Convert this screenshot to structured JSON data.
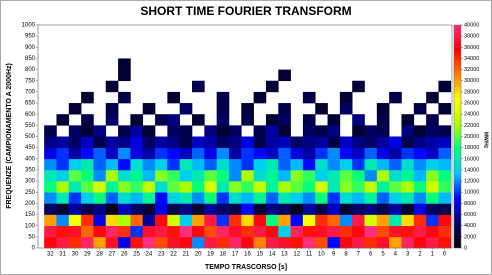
{
  "chart_data": {
    "type": "heatmap",
    "title": "SHORT TIME FOURIER TRANSFORM",
    "x_label": "TEMPO TRASCORSO [s]",
    "y_label": "FREQUENZE (CAMPIONAMENTO A 2000Hz)",
    "colorbar_label": "MW/Hz",
    "x": [
      32,
      31,
      30,
      29,
      28,
      27,
      26,
      25,
      24,
      23,
      22,
      21,
      20,
      19,
      18,
      17,
      16,
      15,
      14,
      13,
      12,
      11,
      10,
      9,
      8,
      7,
      6,
      5,
      4,
      3,
      2,
      1,
      0
    ],
    "xlim": [
      33,
      -0.6
    ],
    "y_bins": [
      0,
      50,
      100,
      150,
      200,
      250,
      300,
      350,
      400,
      450,
      500,
      550,
      600,
      650,
      700,
      750,
      800,
      850,
      900,
      950,
      1000
    ],
    "ylim": [
      0,
      1000
    ],
    "yticks": [
      0,
      50,
      100,
      150,
      200,
      250,
      300,
      350,
      400,
      450,
      500,
      550,
      600,
      650,
      700,
      750,
      800,
      850,
      900,
      950,
      1000
    ],
    "zlim": [
      0,
      40000
    ],
    "zticks": [
      0,
      2000,
      4000,
      6000,
      8000,
      10000,
      12000,
      14000,
      16000,
      18000,
      20000,
      22000,
      24000,
      26000,
      28000,
      30000,
      32000,
      34000,
      36000,
      38000,
      40000
    ],
    "colormap": [
      "#000000",
      "#00006e",
      "#0000ff",
      "#00c8ff",
      "#00ff80",
      "#b4ff00",
      "#ffff00",
      "#ff8000",
      "#ff0000",
      "#ff2e7e"
    ],
    "z": [
      [
        36000,
        38000,
        34000,
        39000,
        30000,
        37000,
        8000,
        35000,
        40000,
        33000,
        37000,
        36000,
        12000,
        38000,
        34000,
        39000,
        36000,
        31000,
        38000,
        37000,
        35000,
        40000,
        33000,
        9000,
        36000,
        38000,
        34000,
        37000,
        30000,
        39000,
        36000,
        38000,
        35000
      ],
      [
        38000,
        35000,
        37000,
        32000,
        36000,
        39000,
        34000,
        10000,
        37000,
        38000,
        35000,
        40000,
        36000,
        33000,
        39000,
        37000,
        34000,
        38000,
        36000,
        14000,
        39000,
        35000,
        37000,
        38000,
        34000,
        36000,
        40000,
        33000,
        37000,
        35000,
        38000,
        36000,
        34000
      ],
      [
        30000,
        12000,
        26000,
        34000,
        8000,
        28000,
        22000,
        32000,
        6000,
        36000,
        24000,
        14000,
        30000,
        38000,
        10000,
        34000,
        28000,
        36000,
        18000,
        30000,
        9000,
        26000,
        34000,
        32000,
        12000,
        38000,
        24000,
        30000,
        16000,
        28000,
        34000,
        10000,
        36000
      ],
      [
        4000,
        2000,
        6000,
        3000,
        5000,
        1000,
        7000,
        4000,
        2000,
        8000,
        3000,
        5000,
        2000,
        6000,
        4000,
        3000,
        9000,
        2000,
        5000,
        4000,
        1000,
        6000,
        3000,
        7000,
        2000,
        4000,
        5000,
        3000,
        6000,
        2000,
        8000,
        4000,
        3000
      ],
      [
        12000,
        16000,
        10000,
        14000,
        18000,
        11000,
        15000,
        13000,
        17000,
        9000,
        14000,
        16000,
        12000,
        18000,
        10000,
        15000,
        13000,
        17000,
        11000,
        16000,
        14000,
        12000,
        18000,
        10000,
        15000,
        13000,
        17000,
        11000,
        14000,
        16000,
        12000,
        18000,
        13000
      ],
      [
        18000,
        22000,
        16000,
        20000,
        24000,
        17000,
        21000,
        19000,
        23000,
        15000,
        20000,
        22000,
        18000,
        24000,
        16000,
        21000,
        19000,
        23000,
        17000,
        22000,
        20000,
        18000,
        24000,
        16000,
        21000,
        19000,
        23000,
        17000,
        20000,
        22000,
        18000,
        24000,
        19000
      ],
      [
        16000,
        14000,
        20000,
        18000,
        12000,
        22000,
        15000,
        17000,
        13000,
        21000,
        19000,
        14000,
        16000,
        20000,
        18000,
        12000,
        22000,
        15000,
        17000,
        13000,
        21000,
        19000,
        14000,
        16000,
        20000,
        18000,
        12000,
        22000,
        15000,
        17000,
        13000,
        21000,
        18000
      ],
      [
        12000,
        10000,
        14000,
        16000,
        11000,
        13000,
        9000,
        15000,
        12000,
        14000,
        10000,
        16000,
        13000,
        11000,
        15000,
        12000,
        10000,
        14000,
        16000,
        11000,
        13000,
        9000,
        15000,
        12000,
        14000,
        10000,
        16000,
        13000,
        11000,
        15000,
        12000,
        14000,
        13000
      ],
      [
        8000,
        10000,
        6000,
        9000,
        11000,
        7000,
        12000,
        8000,
        6000,
        10000,
        9000,
        7000,
        11000,
        8000,
        12000,
        6000,
        10000,
        9000,
        7000,
        11000,
        8000,
        6000,
        10000,
        12000,
        9000,
        7000,
        11000,
        8000,
        6000,
        10000,
        9000,
        7000,
        11000
      ],
      [
        5000,
        6000,
        4000,
        7000,
        3000,
        6000,
        5000,
        8000,
        4000,
        6000,
        5000,
        3000,
        7000,
        6000,
        4000,
        5000,
        8000,
        3000,
        6000,
        7000,
        4000,
        5000,
        6000,
        3000,
        7000,
        5000,
        4000,
        6000,
        8000,
        3000,
        5000,
        6000,
        7000
      ],
      [
        3000,
        null,
        4000,
        2000,
        5000,
        null,
        3000,
        6000,
        2000,
        null,
        4000,
        3000,
        null,
        5000,
        2000,
        4000,
        null,
        3000,
        6000,
        2000,
        null,
        4000,
        3000,
        5000,
        null,
        2000,
        4000,
        3000,
        null,
        5000,
        2000,
        4000,
        3000
      ],
      [
        null,
        2000,
        null,
        3000,
        null,
        4000,
        null,
        2000,
        null,
        3000,
        5000,
        null,
        2000,
        null,
        4000,
        null,
        3000,
        null,
        2000,
        4000,
        null,
        3000,
        null,
        2000,
        null,
        5000,
        null,
        3000,
        null,
        2000,
        null,
        3000,
        null
      ],
      [
        null,
        null,
        2000,
        null,
        null,
        3000,
        null,
        null,
        2000,
        null,
        null,
        4000,
        null,
        null,
        3000,
        null,
        2000,
        null,
        null,
        3000,
        null,
        null,
        2000,
        null,
        4000,
        null,
        null,
        2000,
        null,
        null,
        3000,
        null,
        2000
      ],
      [
        null,
        null,
        null,
        2000,
        null,
        null,
        3000,
        null,
        null,
        null,
        2000,
        null,
        null,
        null,
        3000,
        null,
        null,
        2000,
        null,
        null,
        null,
        3000,
        null,
        null,
        2000,
        null,
        null,
        null,
        3000,
        null,
        null,
        2000,
        null
      ],
      [
        null,
        null,
        null,
        null,
        null,
        2000,
        null,
        null,
        null,
        null,
        null,
        null,
        3000,
        null,
        null,
        null,
        null,
        null,
        2000,
        null,
        null,
        null,
        null,
        null,
        null,
        2000,
        null,
        null,
        null,
        null,
        null,
        null,
        2000
      ],
      [
        null,
        null,
        null,
        null,
        null,
        null,
        2000,
        null,
        null,
        null,
        null,
        null,
        null,
        null,
        null,
        null,
        null,
        null,
        null,
        2000,
        null,
        null,
        null,
        null,
        null,
        null,
        null,
        null,
        null,
        null,
        null,
        null,
        null
      ],
      [
        null,
        null,
        null,
        null,
        null,
        null,
        2000,
        null,
        null,
        null,
        null,
        null,
        null,
        null,
        null,
        null,
        null,
        null,
        null,
        null,
        null,
        null,
        null,
        null,
        null,
        null,
        null,
        null,
        null,
        null,
        null,
        null,
        null
      ],
      [
        null,
        null,
        null,
        null,
        null,
        null,
        null,
        null,
        null,
        null,
        null,
        null,
        null,
        null,
        null,
        null,
        null,
        null,
        null,
        null,
        null,
        null,
        null,
        null,
        null,
        null,
        null,
        null,
        null,
        null,
        null,
        null,
        null
      ],
      [
        null,
        null,
        null,
        null,
        null,
        null,
        null,
        null,
        null,
        null,
        null,
        null,
        null,
        null,
        null,
        null,
        null,
        null,
        null,
        null,
        null,
        null,
        null,
        null,
        null,
        null,
        null,
        null,
        null,
        null,
        null,
        null,
        null
      ],
      [
        null,
        null,
        null,
        null,
        null,
        null,
        null,
        null,
        null,
        null,
        null,
        null,
        null,
        null,
        null,
        null,
        null,
        null,
        null,
        null,
        null,
        null,
        null,
        null,
        null,
        null,
        null,
        null,
        null,
        null,
        null,
        null,
        null
      ]
    ]
  }
}
